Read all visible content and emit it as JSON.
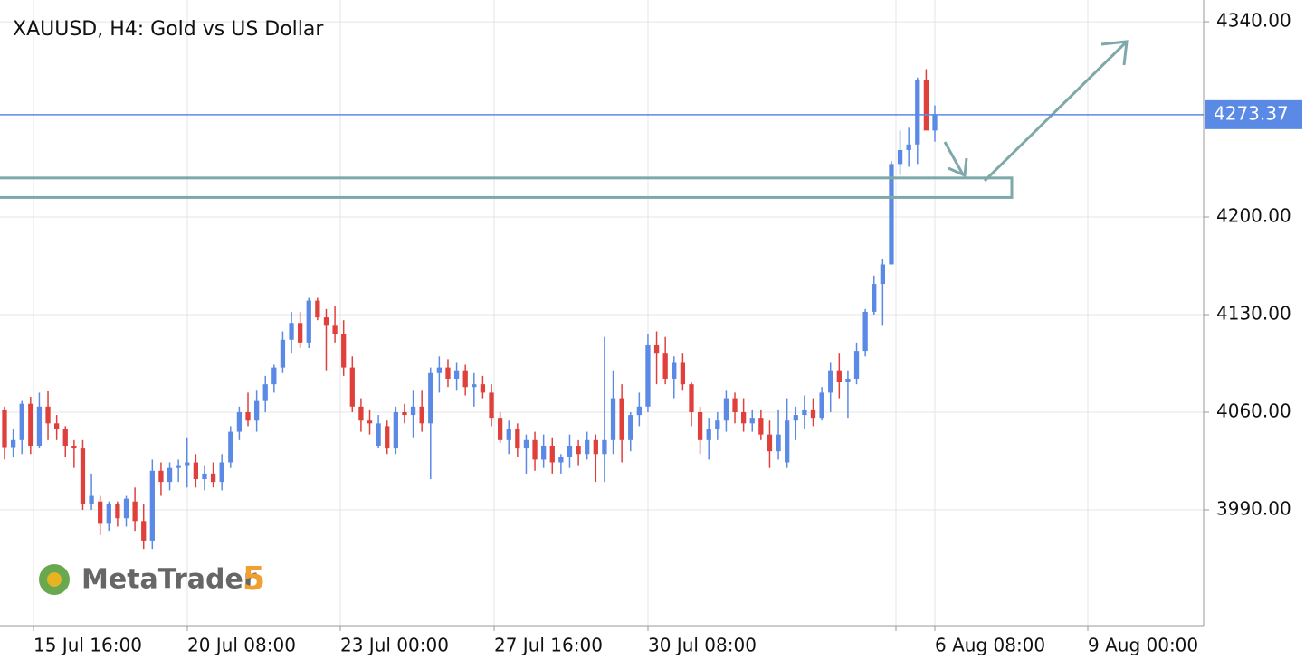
{
  "chart_data": {
    "type": "candlestick",
    "title": "XAUUSD, H4: Gold vs US Dollar",
    "up_color": "#5b8ae6",
    "down_color": "#e0403c",
    "grid": true,
    "ylim": [
      3907,
      4355.6
    ],
    "yticks": [
      {
        "value": 3990,
        "label": "3990.00"
      },
      {
        "value": 4060,
        "label": "4060.00"
      },
      {
        "value": 4130,
        "label": "4130.00"
      },
      {
        "value": 4200,
        "label": "4200.00"
      },
      {
        "value": 4340,
        "label": "4340.00"
      }
    ],
    "xtick_labels": [
      "15 Jul 16:00",
      "20 Jul 08:00",
      "23 Jul 00:00",
      "27 Jul 16:00",
      "30 Jul 08:00",
      "6 Aug 08:00",
      "9 Aug 00:00"
    ],
    "last_price": 4273.37,
    "zone": [
      4214,
      4228
    ],
    "logo": {
      "name": "MetaTrader",
      "version": "5"
    },
    "ohlc": [
      [
        4062,
        4064,
        4026,
        4035
      ],
      [
        4035,
        4048,
        4028,
        4040
      ],
      [
        4040,
        4068,
        4030,
        4066
      ],
      [
        4066,
        4071,
        4030,
        4036
      ],
      [
        4036,
        4074,
        4034,
        4064
      ],
      [
        4064,
        4075,
        4040,
        4052
      ],
      [
        4052,
        4058,
        4040,
        4048
      ],
      [
        4048,
        4050,
        4028,
        4036
      ],
      [
        4036,
        4040,
        4020,
        4034
      ],
      [
        4034,
        4040,
        3990,
        3994
      ],
      [
        3994,
        4016,
        3990,
        4000
      ],
      [
        3996,
        4000,
        3972,
        3980
      ],
      [
        3980,
        3996,
        3975,
        3994
      ],
      [
        3994,
        3996,
        3978,
        3984
      ],
      [
        3984,
        4000,
        3978,
        3998
      ],
      [
        3996,
        4006,
        3975,
        3982
      ],
      [
        3982,
        3994,
        3962,
        3968
      ],
      [
        3968,
        4026,
        3962,
        4018
      ],
      [
        4018,
        4024,
        4000,
        4010
      ],
      [
        4010,
        4024,
        4004,
        4020
      ],
      [
        4020,
        4026,
        4010,
        4022
      ],
      [
        4022,
        4042,
        4006,
        4024
      ],
      [
        4024,
        4030,
        4006,
        4012
      ],
      [
        4012,
        4022,
        4004,
        4016
      ],
      [
        4016,
        4024,
        4006,
        4010
      ],
      [
        4010,
        4030,
        4004,
        4024
      ],
      [
        4024,
        4050,
        4020,
        4046
      ],
      [
        4046,
        4064,
        4040,
        4060
      ],
      [
        4060,
        4074,
        4050,
        4054
      ],
      [
        4054,
        4076,
        4046,
        4068
      ],
      [
        4068,
        4086,
        4060,
        4080
      ],
      [
        4080,
        4094,
        4074,
        4092
      ],
      [
        4092,
        4118,
        4088,
        4112
      ],
      [
        4112,
        4132,
        4102,
        4124
      ],
      [
        4124,
        4132,
        4106,
        4110
      ],
      [
        4110,
        4142,
        4106,
        4140
      ],
      [
        4140,
        4142,
        4126,
        4128
      ],
      [
        4128,
        4134,
        4090,
        4122
      ],
      [
        4122,
        4136,
        4110,
        4116
      ],
      [
        4116,
        4126,
        4086,
        4092
      ],
      [
        4092,
        4100,
        4060,
        4064
      ],
      [
        4064,
        4070,
        4046,
        4054
      ],
      [
        4054,
        4062,
        4044,
        4052
      ],
      [
        4036,
        4058,
        4034,
        4052
      ],
      [
        4050,
        4054,
        4030,
        4034
      ],
      [
        4034,
        4064,
        4030,
        4060
      ],
      [
        4060,
        4066,
        4052,
        4058
      ],
      [
        4058,
        4076,
        4042,
        4064
      ],
      [
        4064,
        4076,
        4046,
        4052
      ],
      [
        4052,
        4092,
        4012,
        4088
      ],
      [
        4088,
        4100,
        4074,
        4092
      ],
      [
        4092,
        4098,
        4078,
        4084
      ],
      [
        4084,
        4096,
        4076,
        4090
      ],
      [
        4090,
        4094,
        4072,
        4078
      ],
      [
        4078,
        4088,
        4064,
        4080
      ],
      [
        4080,
        4086,
        4070,
        4074
      ],
      [
        4074,
        4080,
        4050,
        4056
      ],
      [
        4056,
        4060,
        4038,
        4040
      ],
      [
        4040,
        4054,
        4030,
        4048
      ],
      [
        4048,
        4052,
        4028,
        4034
      ],
      [
        4034,
        4044,
        4016,
        4040
      ],
      [
        4040,
        4046,
        4018,
        4026
      ],
      [
        4026,
        4044,
        4020,
        4036
      ],
      [
        4036,
        4042,
        4016,
        4024
      ],
      [
        4024,
        4030,
        4016,
        4028
      ],
      [
        4028,
        4044,
        4020,
        4036
      ],
      [
        4036,
        4040,
        4022,
        4030
      ],
      [
        4030,
        4046,
        4026,
        4040
      ],
      [
        4040,
        4044,
        4010,
        4030
      ],
      [
        4030,
        4114,
        4010,
        4040
      ],
      [
        4040,
        4090,
        4030,
        4070
      ],
      [
        4070,
        4080,
        4024,
        4040
      ],
      [
        4040,
        4060,
        4032,
        4058
      ],
      [
        4058,
        4074,
        4050,
        4064
      ],
      [
        4064,
        4116,
        4060,
        4108
      ],
      [
        4108,
        4118,
        4080,
        4102
      ],
      [
        4102,
        4114,
        4080,
        4084
      ],
      [
        4084,
        4100,
        4070,
        4096
      ],
      [
        4096,
        4102,
        4076,
        4080
      ],
      [
        4080,
        4082,
        4050,
        4060
      ],
      [
        4060,
        4064,
        4030,
        4040
      ],
      [
        4040,
        4056,
        4026,
        4048
      ],
      [
        4048,
        4060,
        4040,
        4054
      ],
      [
        4054,
        4076,
        4046,
        4070
      ],
      [
        4070,
        4074,
        4052,
        4060
      ],
      [
        4060,
        4070,
        4046,
        4052
      ],
      [
        4052,
        4062,
        4046,
        4056
      ],
      [
        4056,
        4062,
        4040,
        4044
      ],
      [
        4044,
        4054,
        4020,
        4032
      ],
      [
        4032,
        4062,
        4026,
        4044
      ],
      [
        4024,
        4070,
        4020,
        4054
      ],
      [
        4054,
        4064,
        4040,
        4058
      ],
      [
        4058,
        4072,
        4048,
        4062
      ],
      [
        4062,
        4070,
        4050,
        4056
      ],
      [
        4056,
        4078,
        4054,
        4074
      ],
      [
        4074,
        4096,
        4060,
        4090
      ],
      [
        4090,
        4102,
        4070,
        4082
      ],
      [
        4082,
        4090,
        4056,
        4084
      ],
      [
        4084,
        4110,
        4080,
        4104
      ],
      [
        4104,
        4134,
        4100,
        4132
      ],
      [
        4132,
        4158,
        4130,
        4152
      ],
      [
        4152,
        4170,
        4122,
        4166
      ],
      [
        4166,
        4240,
        4166,
        4238
      ],
      [
        4238,
        4262,
        4230,
        4248
      ],
      [
        4248,
        4264,
        4236,
        4252
      ],
      [
        4252,
        4300,
        4238,
        4298
      ],
      [
        4298,
        4306,
        4264,
        4262
      ],
      [
        4262,
        4280,
        4254,
        4273
      ]
    ]
  }
}
